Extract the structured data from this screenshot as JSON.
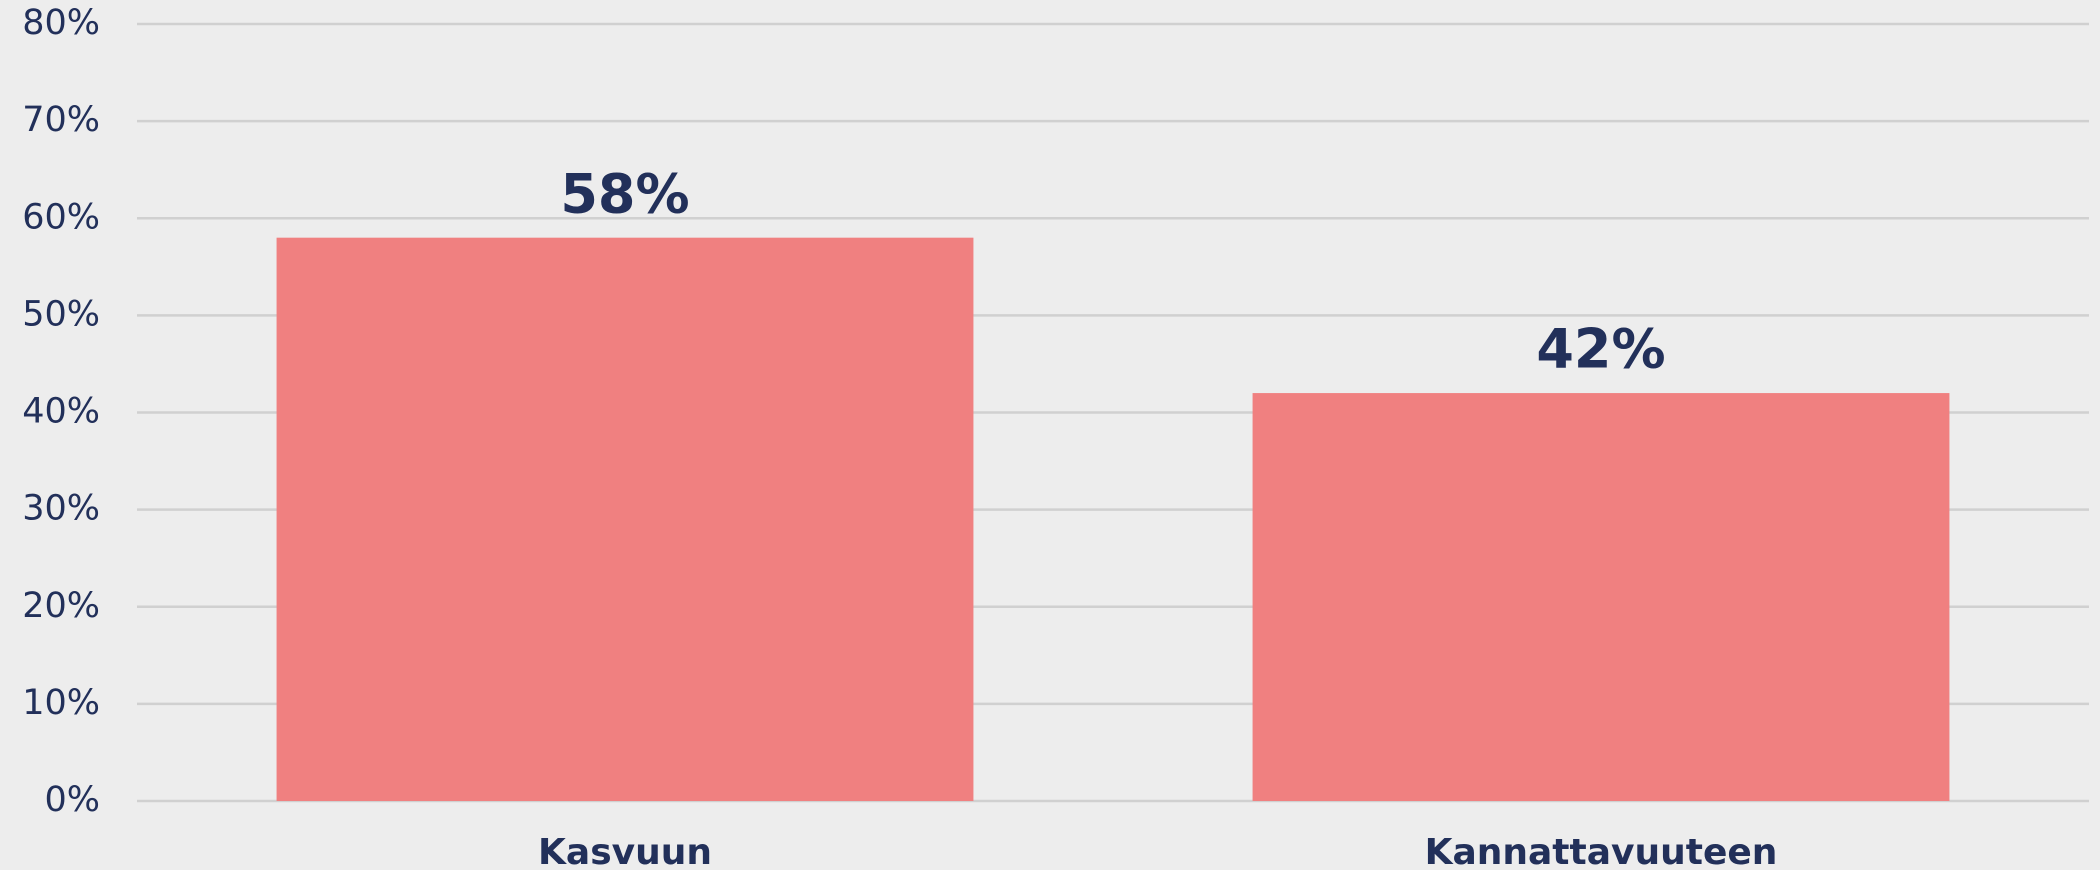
{
  "chart_data": {
    "type": "bar",
    "categories": [
      "Kasvuun",
      "Kannattavuuteen"
    ],
    "values": [
      58,
      42
    ],
    "value_labels": [
      "58%",
      "42%"
    ],
    "color": "#f08080",
    "ylim": [
      0,
      80
    ],
    "yticks": [
      {
        "value": 0,
        "label": "0%"
      },
      {
        "value": 10,
        "label": "10%"
      },
      {
        "value": 20,
        "label": "20%"
      },
      {
        "value": 30,
        "label": "30%"
      },
      {
        "value": 40,
        "label": "40%"
      },
      {
        "value": 50,
        "label": "50%"
      },
      {
        "value": 60,
        "label": "60%"
      },
      {
        "value": 70,
        "label": "70%"
      },
      {
        "value": 80,
        "label": "80%"
      }
    ],
    "grid": true
  }
}
